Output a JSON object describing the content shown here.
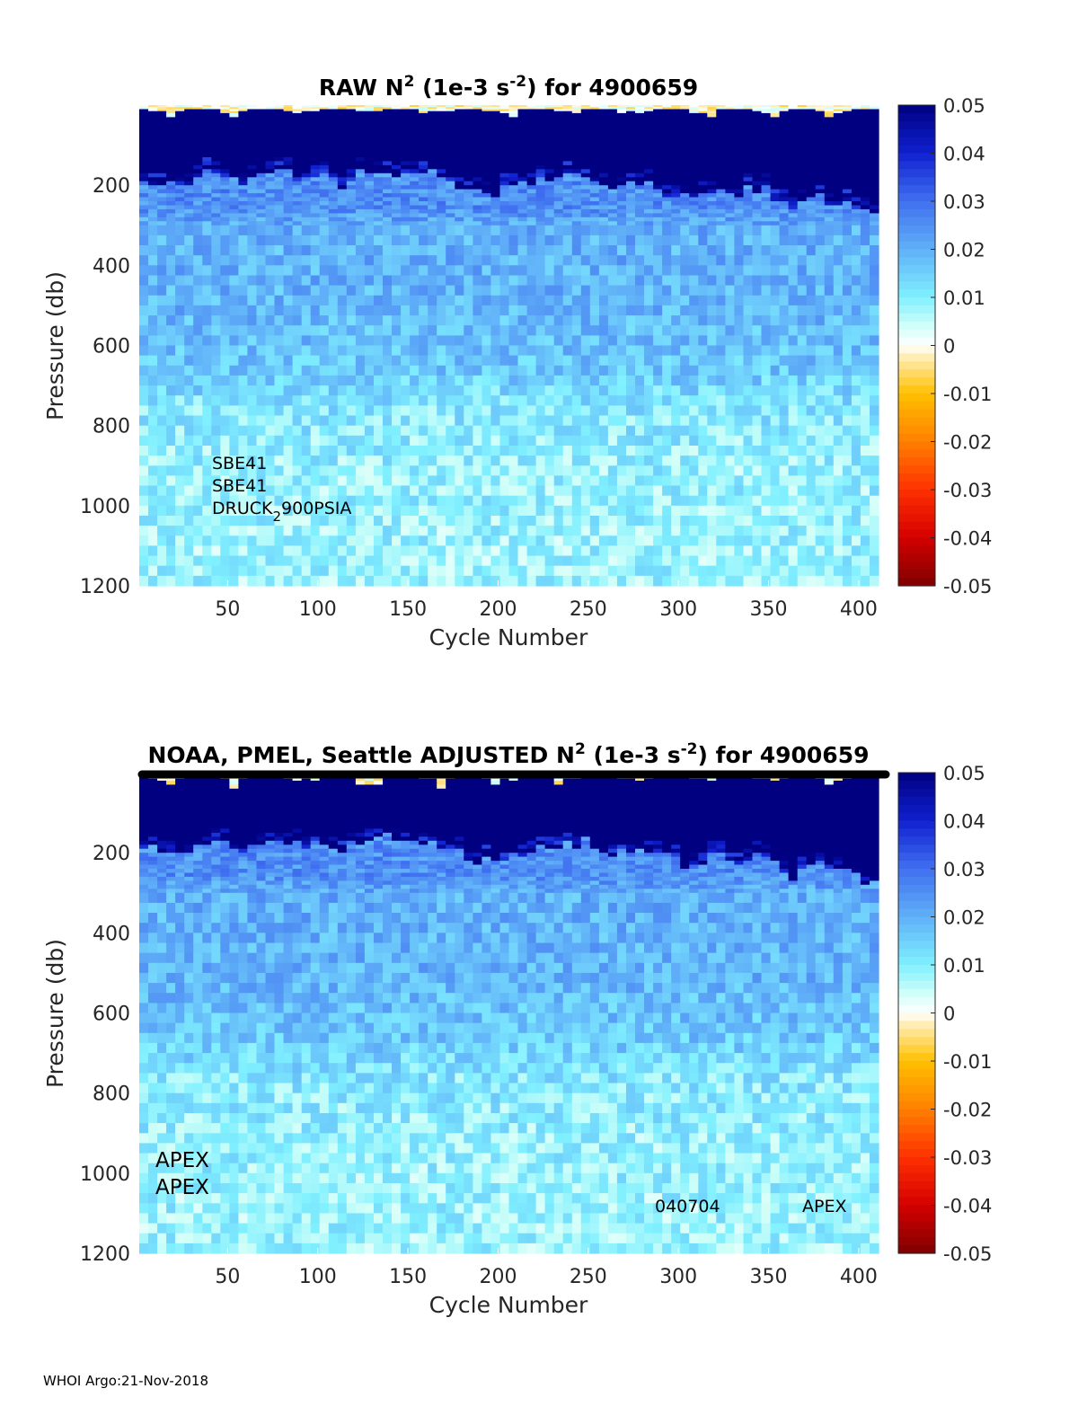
{
  "chart_data": [
    {
      "type": "heatmap",
      "title": {
        "prefix": "RAW N",
        "sup1": "2",
        "mid": " (1e-3 s",
        "sup2": "-2",
        "suffix": ") for 4900659"
      },
      "xlabel": "Cycle Number",
      "ylabel": "Pressure (db)",
      "xlim": [
        1,
        411
      ],
      "ylim": [
        1200,
        0
      ],
      "xticks": [
        50,
        100,
        150,
        200,
        250,
        300,
        350,
        400
      ],
      "yticks": [
        200,
        400,
        600,
        800,
        1000,
        1200
      ],
      "annotations": {
        "line1": "SBE41",
        "line2": "SBE41",
        "line3_main": "DRUCK",
        "line3_sub": "2",
        "line3_rest": "900PSIA"
      },
      "seed": 7
    },
    {
      "type": "heatmap",
      "title": {
        "prefix": "NOAA, PMEL, Seattle  ADJUSTED N",
        "sup1": "2",
        "mid": " (1e-3 s",
        "sup2": "-2",
        "suffix": ") for 4900659"
      },
      "xlabel": "Cycle Number",
      "ylabel": "Pressure (db)",
      "xlim": [
        1,
        411
      ],
      "ylim": [
        1200,
        0
      ],
      "xticks": [
        50,
        100,
        150,
        200,
        250,
        300,
        350,
        400
      ],
      "yticks": [
        200,
        400,
        600,
        800,
        1000,
        1200
      ],
      "annotations": {
        "apex1": "APEX",
        "apex2": "APEX",
        "serial": "040704",
        "type": "APEX"
      },
      "seed": 8
    }
  ],
  "colorbar": {
    "range": [
      -0.05,
      0.05
    ],
    "ticks": [
      "0.05",
      "0.04",
      "0.03",
      "0.02",
      "0.01",
      "0",
      "-0.01",
      "-0.02",
      "-0.03",
      "-0.04",
      "-0.05"
    ],
    "stops": [
      {
        "v": -0.05,
        "c": "#800000"
      },
      {
        "v": -0.04,
        "c": "#d40000"
      },
      {
        "v": -0.03,
        "c": "#ff3000"
      },
      {
        "v": -0.02,
        "c": "#ff8000"
      },
      {
        "v": -0.01,
        "c": "#ffc000"
      },
      {
        "v": -0.002,
        "c": "#fff0c0"
      },
      {
        "v": 0.0,
        "c": "#ffffff"
      },
      {
        "v": 0.004,
        "c": "#d0fff8"
      },
      {
        "v": 0.01,
        "c": "#80f0ff"
      },
      {
        "v": 0.02,
        "c": "#60b0f8"
      },
      {
        "v": 0.03,
        "c": "#4070f0"
      },
      {
        "v": 0.04,
        "c": "#1020d0"
      },
      {
        "v": 0.05,
        "c": "#000080"
      }
    ]
  },
  "profile": {
    "pressure_db": [
      0,
      20,
      40,
      150,
      200,
      300,
      500,
      650,
      750,
      900,
      1200
    ],
    "mean_n2": [
      0.002,
      0.02,
      0.06,
      0.06,
      0.03,
      0.02,
      0.019,
      0.016,
      0.011,
      0.009,
      0.008
    ]
  },
  "thermocline_base": {
    "cycles": [
      0,
      10,
      20,
      30,
      40,
      50,
      60,
      70,
      80,
      90,
      100,
      110,
      120,
      130,
      140,
      150,
      160,
      170,
      180,
      190,
      200,
      210,
      220,
      230,
      240,
      250,
      260,
      270,
      280,
      290,
      300,
      310,
      320,
      330,
      340,
      350,
      360,
      370,
      380,
      390,
      400,
      410
    ],
    "pressure_db": [
      180,
      190,
      200,
      170,
      160,
      175,
      185,
      165,
      170,
      180,
      175,
      195,
      170,
      160,
      165,
      170,
      160,
      175,
      215,
      215,
      210,
      195,
      180,
      175,
      170,
      175,
      200,
      185,
      190,
      210,
      220,
      210,
      205,
      225,
      200,
      220,
      260,
      220,
      230,
      250,
      260,
      250
    ]
  },
  "footer": "WHOI Argo:21-Nov-2018"
}
